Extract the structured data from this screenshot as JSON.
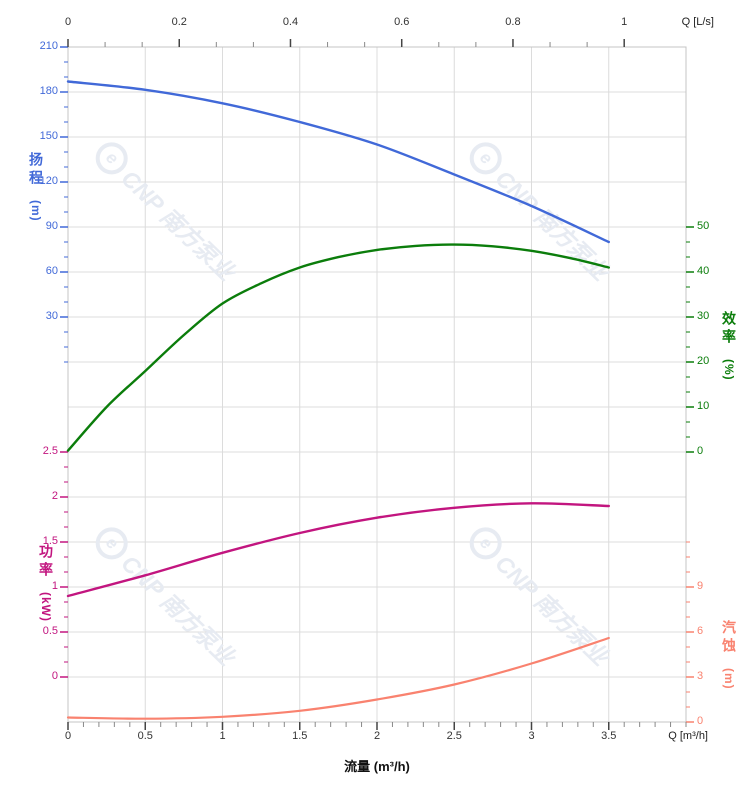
{
  "watermark": {
    "logo_glyph": "e",
    "text": "CNP 南方泵业",
    "color": "#e7ebf2"
  },
  "corner_labels": {
    "top_right": "Q [L/s]",
    "bottom_right": "Q [m³/h]"
  },
  "xlabel": "流量 (m³/h)",
  "axis_titles": {
    "head": {
      "text": "扬程",
      "unit": "(m)",
      "color": "#4169d8"
    },
    "power": {
      "text": "功率",
      "unit": "(kW)",
      "color": "#c2157f"
    },
    "eff": {
      "text": "效率",
      "unit": "(%)",
      "color": "#0b7d0b"
    },
    "npsh": {
      "text": "汽蚀",
      "unit": "(m)",
      "color": "#f9826f"
    }
  },
  "chart_data": {
    "type": "line",
    "title": "",
    "x_bottom": {
      "label": "流量 (m³/h)",
      "unit": "m³/h",
      "range": [
        0,
        4
      ],
      "ticks": [
        0,
        0.5,
        1,
        1.5,
        2,
        2.5,
        3,
        3.5
      ],
      "minor_step": 0.1
    },
    "x_top": {
      "label": "Q [L/s]",
      "unit": "L/s",
      "range": [
        0,
        1.11
      ],
      "ticks": [
        0,
        0.2,
        0.4,
        0.6,
        0.8,
        1
      ],
      "minor_step": 0.066667
    },
    "grid": true,
    "y_axes": {
      "head": {
        "label": "扬程 (m)",
        "side": "left",
        "color": "#4169d8",
        "ticks": [
          210,
          180,
          150,
          120,
          90,
          60,
          30
        ],
        "minor_step": 10,
        "minor_range": [
          0,
          210
        ]
      },
      "power": {
        "label": "功率 (kW)",
        "side": "left",
        "color": "#c2157f",
        "ticks": [
          2.5,
          2,
          1.5,
          1,
          0.5,
          0
        ],
        "minor_step": 0.166667,
        "minor_range": [
          0,
          2.5
        ]
      },
      "eff": {
        "label": "效率 (%)",
        "side": "right",
        "color": "#0b7d0b",
        "ticks": [
          50,
          40,
          30,
          20,
          10,
          0
        ],
        "minor_step": 3.333333,
        "minor_range": [
          0,
          50
        ]
      },
      "npsh": {
        "label": "汽蚀 (m)",
        "side": "right",
        "color": "#f9826f",
        "ticks": [
          9,
          6,
          3,
          0
        ],
        "minor_step": 1,
        "minor_range": [
          0,
          12
        ]
      }
    },
    "series": [
      {
        "name": "head-curve",
        "label_cn": "扬程",
        "axis": "head",
        "color": "#4169d8",
        "width": 2.4,
        "points": [
          [
            0,
            187
          ],
          [
            0.5,
            181.5
          ],
          [
            1,
            172.5
          ],
          [
            1.5,
            160
          ],
          [
            2,
            145
          ],
          [
            2.5,
            125
          ],
          [
            3,
            104
          ],
          [
            3.5,
            80
          ]
        ]
      },
      {
        "name": "efficiency-curve",
        "label_cn": "效率",
        "axis": "eff",
        "color": "#0b7d0b",
        "width": 2.4,
        "points": [
          [
            0,
            0.3
          ],
          [
            0.25,
            10
          ],
          [
            0.5,
            18
          ],
          [
            0.75,
            26
          ],
          [
            1,
            33
          ],
          [
            1.25,
            37.5
          ],
          [
            1.5,
            41
          ],
          [
            1.75,
            43.3
          ],
          [
            2,
            44.9
          ],
          [
            2.25,
            45.8
          ],
          [
            2.5,
            46.1
          ],
          [
            2.75,
            45.7
          ],
          [
            3,
            44.7
          ],
          [
            3.25,
            43.1
          ],
          [
            3.5,
            41
          ]
        ]
      },
      {
        "name": "power-curve",
        "label_cn": "功率",
        "axis": "power",
        "color": "#c2157f",
        "width": 2.4,
        "points": [
          [
            0,
            0.9
          ],
          [
            0.5,
            1.13
          ],
          [
            1,
            1.38
          ],
          [
            1.5,
            1.6
          ],
          [
            2,
            1.77
          ],
          [
            2.5,
            1.88
          ],
          [
            3,
            1.93
          ],
          [
            3.5,
            1.9
          ]
        ]
      },
      {
        "name": "npsh-curve",
        "label_cn": "汽蚀",
        "axis": "npsh",
        "color": "#f9826f",
        "width": 2.2,
        "points": [
          [
            0,
            0.3
          ],
          [
            0.5,
            0.22
          ],
          [
            1,
            0.35
          ],
          [
            1.5,
            0.75
          ],
          [
            2,
            1.5
          ],
          [
            2.5,
            2.5
          ],
          [
            3,
            3.9
          ],
          [
            3.5,
            5.6
          ]
        ]
      }
    ]
  }
}
